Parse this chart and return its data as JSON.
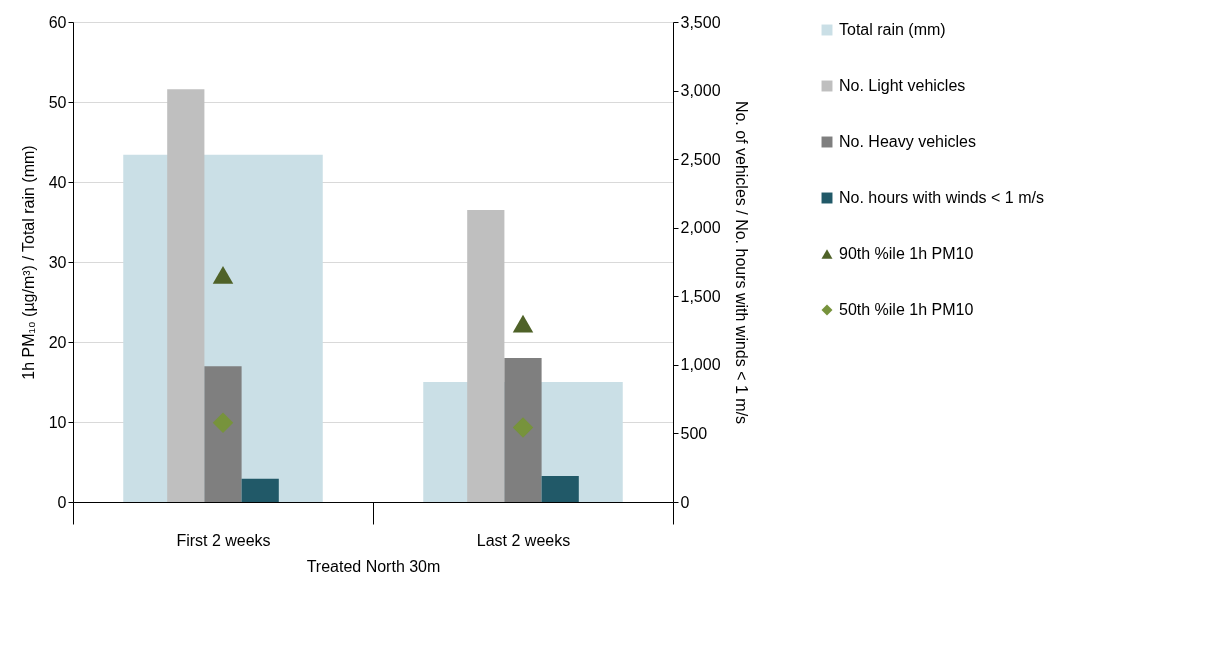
{
  "chart_data": {
    "type": "bar",
    "categories": [
      "First 2 weeks",
      "Last 2 weeks"
    ],
    "xlabel": "Treated North 30m",
    "ylabel": "1h PM₁₀ (µg/m³) / Total rain (mm)",
    "y2label": "No. of vehicles / No. hours with winds < 1 m/s",
    "ylim": [
      0,
      60
    ],
    "yticks": [
      0,
      10,
      20,
      30,
      40,
      50,
      60
    ],
    "y2lim": [
      0,
      3500
    ],
    "y2ticks": [
      0,
      {
        "value": 500,
        "label": "500"
      },
      {
        "value": 1000,
        "label": "1,000"
      },
      {
        "value": 1500,
        "label": "1,500"
      },
      {
        "value": 2000,
        "label": "2,000"
      },
      {
        "value": 2500,
        "label": "2,500"
      },
      {
        "value": 3000,
        "label": "3,000"
      },
      {
        "value": 3500,
        "label": "3,500"
      }
    ],
    "grid": "y",
    "legend": "right",
    "series": [
      {
        "name": "Total rain (mm)",
        "color": "#cadfe6",
        "values": [
          43.4,
          15.0
        ]
      },
      {
        "name": "No. Light vehicles",
        "type": "bar",
        "axis": "y2",
        "color": "#bfbfbf",
        "values": [
          3010,
          2130
        ]
      },
      {
        "name": "No. Heavy vehicles",
        "type": "bar",
        "axis": "y2",
        "color": "#7f7f7f",
        "values": [
          990,
          1050
        ]
      },
      {
        "name": "No. hours with winds < 1 m/s",
        "type": "bar",
        "axis": "y2",
        "color": "#215968",
        "values": [
          170,
          190
        ]
      },
      {
        "name": "90th %ile 1h PM10",
        "type": "scatter",
        "marker": "triangle",
        "color": "#4f6228",
        "values": [
          28.4,
          22.3
        ]
      },
      {
        "name": "50th %ile 1h PM10",
        "type": "scatter",
        "marker": "diamond",
        "color": "#77933c",
        "values": [
          9.9,
          9.3
        ]
      }
    ]
  }
}
